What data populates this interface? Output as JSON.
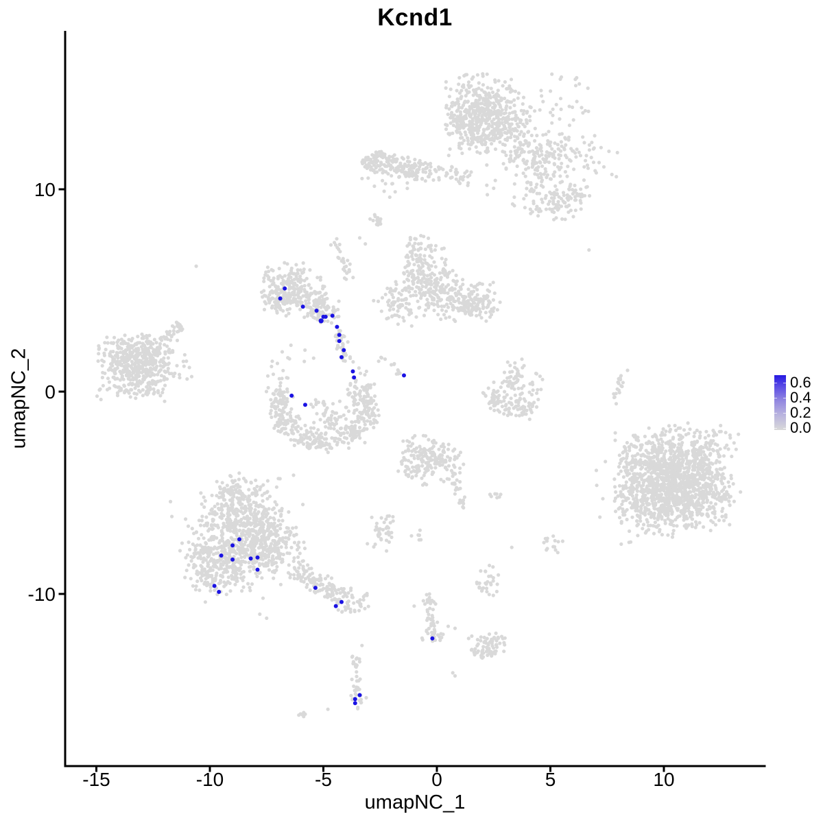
{
  "figure": {
    "title": "Kcnd1"
  },
  "axes": {
    "x": {
      "label": "umapNC_1",
      "ticks": [
        -15,
        -10,
        -5,
        0,
        5,
        10
      ]
    },
    "y": {
      "label": "umapNC_2",
      "ticks": [
        10,
        0,
        -10
      ]
    }
  },
  "legend": {
    "ticks": [
      "0.6",
      "0.4",
      "0.2",
      "0.0"
    ],
    "low_color": "#D9D9D9",
    "high_color": "#2619E2"
  },
  "chart_data": {
    "type": "scatter",
    "title": "Kcnd1",
    "xlabel": "umapNC_1",
    "ylabel": "umapNC_2",
    "x_ticks": [
      -15,
      -10,
      -5,
      0,
      5,
      10
    ],
    "y_ticks": [
      10,
      0,
      -10
    ],
    "xlim": [
      -16.4,
      14.4
    ],
    "ylim": [
      -18.5,
      17.8
    ],
    "grid": false,
    "legend_position": "right",
    "legend_values": [
      0.6,
      0.4,
      0.2,
      0.0
    ],
    "point_color_low": "#D9D9D9",
    "point_color_high": "#1B13E3",
    "background_clusters": [
      {
        "type": "gauss",
        "cx": 2.1,
        "cy": 14.2,
        "sx": 0.85,
        "sy": 0.75,
        "n": 260
      },
      {
        "type": "gauss",
        "cx": 1.6,
        "cy": 13.1,
        "sx": 0.6,
        "sy": 0.7,
        "n": 190
      },
      {
        "type": "gauss",
        "cx": 3.0,
        "cy": 12.9,
        "sx": 0.75,
        "sy": 0.65,
        "n": 150
      },
      {
        "type": "gauss",
        "cx": 3.9,
        "cy": 11.6,
        "sx": 0.5,
        "sy": 0.55,
        "n": 55
      },
      {
        "type": "gauss",
        "cx": 4.7,
        "cy": 10.7,
        "sx": 0.5,
        "sy": 0.5,
        "n": 45
      },
      {
        "type": "gauss",
        "cx": 5.5,
        "cy": 9.4,
        "sx": 0.7,
        "sy": 0.45,
        "n": 80
      },
      {
        "type": "gauss",
        "cx": 4.2,
        "cy": 10.2,
        "sx": 1.2,
        "sy": 0.9,
        "n": 40
      },
      {
        "type": "gauss",
        "cx": 5.5,
        "cy": 14.0,
        "sx": 0.8,
        "sy": 0.9,
        "n": 35
      },
      {
        "type": "gauss",
        "cx": 5.3,
        "cy": 11.8,
        "sx": 0.55,
        "sy": 0.45,
        "n": 55
      },
      {
        "type": "gauss",
        "cx": 6.8,
        "cy": 11.5,
        "sx": 0.6,
        "sy": 0.8,
        "n": 30
      },
      {
        "type": "seg",
        "x1": -3.3,
        "y1": 11.4,
        "x2": -0.4,
        "y2": 10.9,
        "perp": 0.3,
        "n": 190
      },
      {
        "type": "seg",
        "x1": -0.4,
        "y1": 10.9,
        "x2": 1.5,
        "y2": 10.5,
        "perp": 0.22,
        "n": 45
      },
      {
        "type": "gauss",
        "cx": -2.0,
        "cy": 10.2,
        "sx": 0.8,
        "sy": 0.3,
        "n": 14
      },
      {
        "type": "pts",
        "pts": [
          [
            2.2,
            10.2
          ],
          [
            2.5,
            10.05
          ],
          [
            2.2,
            11.2
          ]
        ]
      },
      {
        "type": "seg",
        "x1": -2.95,
        "y1": 8.75,
        "x2": -2.45,
        "y2": 8.3,
        "perp": 0.09,
        "n": 14
      },
      {
        "type": "seg",
        "x1": -4.55,
        "y1": 7.6,
        "x2": -3.8,
        "y2": 5.5,
        "perp": 0.13,
        "n": 28
      },
      {
        "type": "pts",
        "pts": [
          [
            -3.4,
            7.6
          ],
          [
            -3.15,
            7.3
          ],
          [
            6.7,
            7.0
          ],
          [
            -10.6,
            6.2
          ]
        ]
      },
      {
        "type": "gauss",
        "cx": -6.8,
        "cy": 5.3,
        "sx": 0.55,
        "sy": 0.5,
        "n": 90
      },
      {
        "type": "gauss",
        "cx": -6.0,
        "cy": 4.8,
        "sx": 0.6,
        "sy": 0.55,
        "n": 90
      },
      {
        "type": "gauss",
        "cx": -6.9,
        "cy": 4.4,
        "sx": 0.4,
        "sy": 0.4,
        "n": 50
      },
      {
        "type": "gauss",
        "cx": -5.4,
        "cy": 4.3,
        "sx": 0.5,
        "sy": 0.4,
        "n": 55
      },
      {
        "type": "gauss",
        "cx": -4.9,
        "cy": 3.9,
        "sx": 0.35,
        "sy": 0.35,
        "n": 40
      },
      {
        "type": "gauss",
        "cx": -6.3,
        "cy": 5.9,
        "sx": 0.7,
        "sy": 0.3,
        "n": 25
      },
      {
        "type": "seg",
        "x1": -4.45,
        "y1": 3.1,
        "x2": -3.85,
        "y2": 1.3,
        "perp": 0.15,
        "n": 35
      },
      {
        "type": "arc",
        "cx": -5.0,
        "cy": -0.8,
        "rx": 2.0,
        "ry": 1.75,
        "a1": 160,
        "a2": 380,
        "jit": 0.28,
        "n": 270
      },
      {
        "type": "gauss",
        "cx": -5.1,
        "cy": -1.5,
        "sx": 1.1,
        "sy": 0.55,
        "n": 110
      },
      {
        "type": "gauss",
        "cx": -3.4,
        "cy": 0.0,
        "sx": 0.35,
        "sy": 0.6,
        "n": 60
      },
      {
        "type": "gauss",
        "cx": -6.9,
        "cy": 0.1,
        "sx": 0.3,
        "sy": 0.4,
        "n": 30
      },
      {
        "type": "gauss",
        "cx": -6.7,
        "cy": 1.7,
        "sx": 0.7,
        "sy": 0.55,
        "n": 12
      },
      {
        "type": "gauss",
        "cx": -13.7,
        "cy": 1.4,
        "sx": 0.7,
        "sy": 0.7,
        "n": 200
      },
      {
        "type": "gauss",
        "cx": -12.9,
        "cy": 0.9,
        "sx": 0.65,
        "sy": 0.55,
        "n": 140
      },
      {
        "type": "gauss",
        "cx": -13.3,
        "cy": 2.1,
        "sx": 0.55,
        "sy": 0.4,
        "n": 80
      },
      {
        "type": "gauss",
        "cx": -12.4,
        "cy": 1.9,
        "sx": 0.5,
        "sy": 0.4,
        "n": 60
      },
      {
        "type": "seg",
        "x1": -12.1,
        "y1": 2.5,
        "x2": -11.3,
        "y2": 3.3,
        "perp": 0.16,
        "n": 30
      },
      {
        "type": "gauss",
        "cx": -11.7,
        "cy": 1.0,
        "sx": 0.55,
        "sy": 0.65,
        "n": 25
      },
      {
        "type": "gauss",
        "cx": -13.6,
        "cy": -0.1,
        "sx": 0.8,
        "sy": 0.25,
        "n": 30
      },
      {
        "type": "gauss",
        "cx": -0.9,
        "cy": 6.4,
        "sx": 0.35,
        "sy": 0.65,
        "n": 80
      },
      {
        "type": "gauss",
        "cx": -0.3,
        "cy": 5.3,
        "sx": 0.75,
        "sy": 0.65,
        "n": 140
      },
      {
        "type": "gauss",
        "cx": 0.9,
        "cy": 4.6,
        "sx": 0.75,
        "sy": 0.55,
        "n": 120
      },
      {
        "type": "gauss",
        "cx": 1.9,
        "cy": 4.4,
        "sx": 0.55,
        "sy": 0.5,
        "n": 70
      },
      {
        "type": "gauss",
        "cx": -1.5,
        "cy": 4.2,
        "sx": 0.45,
        "sy": 0.5,
        "n": 50
      },
      {
        "type": "gauss",
        "cx": -2.2,
        "cy": 4.4,
        "sx": 0.35,
        "sy": 0.8,
        "n": 18
      },
      {
        "type": "gauss",
        "cx": -0.2,
        "cy": 7.0,
        "sx": 0.3,
        "sy": 0.25,
        "n": 12
      },
      {
        "type": "seg",
        "x1": -2.5,
        "y1": 1.7,
        "x2": -1.6,
        "y2": 0.9,
        "perp": 0.1,
        "n": 12
      },
      {
        "type": "gauss",
        "cx": 3.4,
        "cy": 0.6,
        "sx": 0.3,
        "sy": 0.55,
        "n": 50
      },
      {
        "type": "seg",
        "x1": 2.3,
        "y1": -0.5,
        "x2": 4.4,
        "y2": -0.9,
        "perp": 0.3,
        "n": 90
      },
      {
        "type": "gauss",
        "cx": 4.3,
        "cy": 0.2,
        "sx": 0.25,
        "sy": 0.4,
        "n": 15
      },
      {
        "type": "gauss",
        "cx": 2.3,
        "cy": -0.05,
        "sx": 0.25,
        "sy": 0.3,
        "n": 12
      },
      {
        "type": "seg",
        "x1": 8.15,
        "y1": 0.9,
        "x2": 7.85,
        "y2": -0.3,
        "perp": 0.09,
        "n": 18
      },
      {
        "type": "pts",
        "pts": [
          [
            8.4,
            1.05
          ],
          [
            7.9,
            -0.6
          ]
        ]
      },
      {
        "type": "gauss",
        "cx": 10.4,
        "cy": -4.3,
        "sx": 1.25,
        "sy": 1.15,
        "n": 480
      },
      {
        "type": "gauss",
        "cx": 9.7,
        "cy": -5.4,
        "sx": 0.95,
        "sy": 0.85,
        "n": 280
      },
      {
        "type": "gauss",
        "cx": 11.3,
        "cy": -5.2,
        "sx": 0.95,
        "sy": 0.85,
        "n": 240
      },
      {
        "type": "gauss",
        "cx": 11.0,
        "cy": -3.3,
        "sx": 0.9,
        "sy": 0.8,
        "n": 200
      },
      {
        "type": "gauss",
        "cx": 9.3,
        "cy": -3.5,
        "sx": 0.75,
        "sy": 0.7,
        "n": 140
      },
      {
        "type": "gauss",
        "cx": 10.3,
        "cy": -4.5,
        "sx": 1.6,
        "sy": 1.5,
        "n": 140
      },
      {
        "type": "gauss",
        "cx": -8.8,
        "cy": -7.6,
        "sx": 1.0,
        "sy": 0.95,
        "n": 300
      },
      {
        "type": "gauss",
        "cx": -9.5,
        "cy": -8.8,
        "sx": 0.75,
        "sy": 0.65,
        "n": 140
      },
      {
        "type": "gauss",
        "cx": -7.9,
        "cy": -6.7,
        "sx": 0.85,
        "sy": 0.8,
        "n": 170
      },
      {
        "type": "gauss",
        "cx": -8.9,
        "cy": -5.8,
        "sx": 0.75,
        "sy": 0.55,
        "n": 110
      },
      {
        "type": "gauss",
        "cx": -9.0,
        "cy": -4.9,
        "sx": 0.45,
        "sy": 0.35,
        "n": 45
      },
      {
        "type": "gauss",
        "cx": -7.1,
        "cy": -7.9,
        "sx": 0.65,
        "sy": 0.6,
        "n": 100
      },
      {
        "type": "gauss",
        "cx": -10.2,
        "cy": -8.5,
        "sx": 0.45,
        "sy": 0.75,
        "n": 55
      },
      {
        "type": "gauss",
        "cx": -8.6,
        "cy": -7.2,
        "sx": 1.7,
        "sy": 1.5,
        "n": 110
      },
      {
        "type": "gauss",
        "cx": -8.2,
        "cy": -4.7,
        "sx": 0.7,
        "sy": 0.35,
        "n": 35
      },
      {
        "type": "pts",
        "pts": [
          [
            -7.8,
            -11.0
          ],
          [
            -7.5,
            -11.2
          ],
          [
            -10.2,
            -10.4
          ]
        ]
      },
      {
        "type": "seg",
        "x1": -6.3,
        "y1": -8.7,
        "x2": -4.1,
        "y2": -10.2,
        "perp": 0.3,
        "n": 120
      },
      {
        "type": "gauss",
        "cx": -3.7,
        "cy": -10.4,
        "sx": 0.4,
        "sy": 0.3,
        "n": 40
      },
      {
        "type": "gauss",
        "cx": -2.4,
        "cy": -7.0,
        "sx": 0.35,
        "sy": 0.45,
        "n": 38
      },
      {
        "type": "gauss",
        "cx": -0.6,
        "cy": -3.1,
        "sx": 0.55,
        "sy": 0.45,
        "n": 90
      },
      {
        "type": "gauss",
        "cx": 0.2,
        "cy": -3.6,
        "sx": 0.55,
        "sy": 0.45,
        "n": 75
      },
      {
        "type": "gauss",
        "cx": -1.0,
        "cy": -3.9,
        "sx": 0.35,
        "sy": 0.35,
        "n": 35
      },
      {
        "type": "seg",
        "x1": 0.7,
        "y1": -4.4,
        "x2": 1.25,
        "y2": -5.8,
        "perp": 0.14,
        "n": 20
      },
      {
        "type": "gauss",
        "cx": 2.65,
        "cy": -5.05,
        "sx": 0.22,
        "sy": 0.13,
        "n": 8
      },
      {
        "type": "gauss",
        "cx": -0.9,
        "cy": -7.0,
        "sx": 0.2,
        "sy": 0.18,
        "n": 6
      },
      {
        "type": "gauss",
        "cx": 5.0,
        "cy": -7.5,
        "sx": 0.28,
        "sy": 0.33,
        "n": 14
      },
      {
        "type": "pts",
        "pts": [
          [
            3.3,
            -7.7
          ]
        ]
      },
      {
        "type": "gauss",
        "cx": 2.2,
        "cy": -9.4,
        "sx": 0.28,
        "sy": 0.5,
        "n": 30
      },
      {
        "type": "seg",
        "x1": -0.4,
        "y1": -10.0,
        "x2": -0.2,
        "y2": -11.6,
        "perp": 0.14,
        "n": 30
      },
      {
        "type": "gauss",
        "cx": -0.2,
        "cy": -12.0,
        "sx": 0.28,
        "sy": 0.25,
        "n": 22
      },
      {
        "type": "pts",
        "pts": [
          [
            -1.0,
            -10.6
          ],
          [
            0.5,
            -11.6
          ],
          [
            0.8,
            -11.7
          ]
        ]
      },
      {
        "type": "gauss",
        "cx": 2.3,
        "cy": -12.5,
        "sx": 0.38,
        "sy": 0.28,
        "n": 40
      },
      {
        "type": "gauss",
        "cx": 1.9,
        "cy": -12.9,
        "sx": 0.28,
        "sy": 0.22,
        "n": 22
      },
      {
        "type": "gauss",
        "cx": 2.75,
        "cy": -12.2,
        "sx": 0.2,
        "sy": 0.18,
        "n": 12
      },
      {
        "type": "pts",
        "pts": [
          [
            1.4,
            -12.2
          ],
          [
            0.7,
            -13.9
          ],
          [
            0.8,
            -14.05
          ]
        ]
      },
      {
        "type": "seg",
        "x1": -3.55,
        "y1": -13.0,
        "x2": -3.5,
        "y2": -14.9,
        "perp": 0.12,
        "n": 28
      },
      {
        "type": "gauss",
        "cx": -3.5,
        "cy": -15.2,
        "sx": 0.22,
        "sy": 0.26,
        "n": 18
      },
      {
        "type": "pts",
        "pts": [
          [
            -4.8,
            -15.7
          ],
          [
            -3.3,
            -12.55
          ]
        ]
      },
      {
        "type": "seg",
        "x1": -6.05,
        "y1": -16.1,
        "x2": -5.75,
        "y2": -15.85,
        "perp": 0.07,
        "n": 8
      }
    ],
    "expressing_cells": [
      [
        -6.7,
        5.1
      ],
      [
        -6.9,
        4.6
      ],
      [
        -5.9,
        4.2
      ],
      [
        -5.3,
        4.0
      ],
      [
        -5.0,
        3.7
      ],
      [
        -4.9,
        3.7
      ],
      [
        -4.6,
        3.75
      ],
      [
        -5.1,
        3.5,
        3.6
      ],
      [
        -4.4,
        3.2
      ],
      [
        -4.3,
        2.8
      ],
      [
        -4.3,
        2.5
      ],
      [
        -4.1,
        2.05
      ],
      [
        -4.2,
        1.7
      ],
      [
        -3.7,
        1.0
      ],
      [
        -3.65,
        0.7
      ],
      [
        -1.45,
        0.8
      ],
      [
        -6.4,
        -0.2
      ],
      [
        -5.8,
        -0.65
      ],
      [
        -8.7,
        -7.3
      ],
      [
        -9.0,
        -7.6
      ],
      [
        -9.5,
        -8.1
      ],
      [
        -9.0,
        -8.3
      ],
      [
        -8.2,
        -8.25
      ],
      [
        -7.9,
        -8.2
      ],
      [
        -7.9,
        -8.8
      ],
      [
        -9.8,
        -9.6
      ],
      [
        -9.6,
        -9.9
      ],
      [
        -5.35,
        -9.7
      ],
      [
        -4.2,
        -10.4
      ],
      [
        -4.45,
        -10.6
      ],
      [
        -0.2,
        -12.2
      ],
      [
        -3.4,
        -15.0
      ],
      [
        -3.6,
        -15.2
      ],
      [
        -3.6,
        -15.4
      ]
    ]
  }
}
